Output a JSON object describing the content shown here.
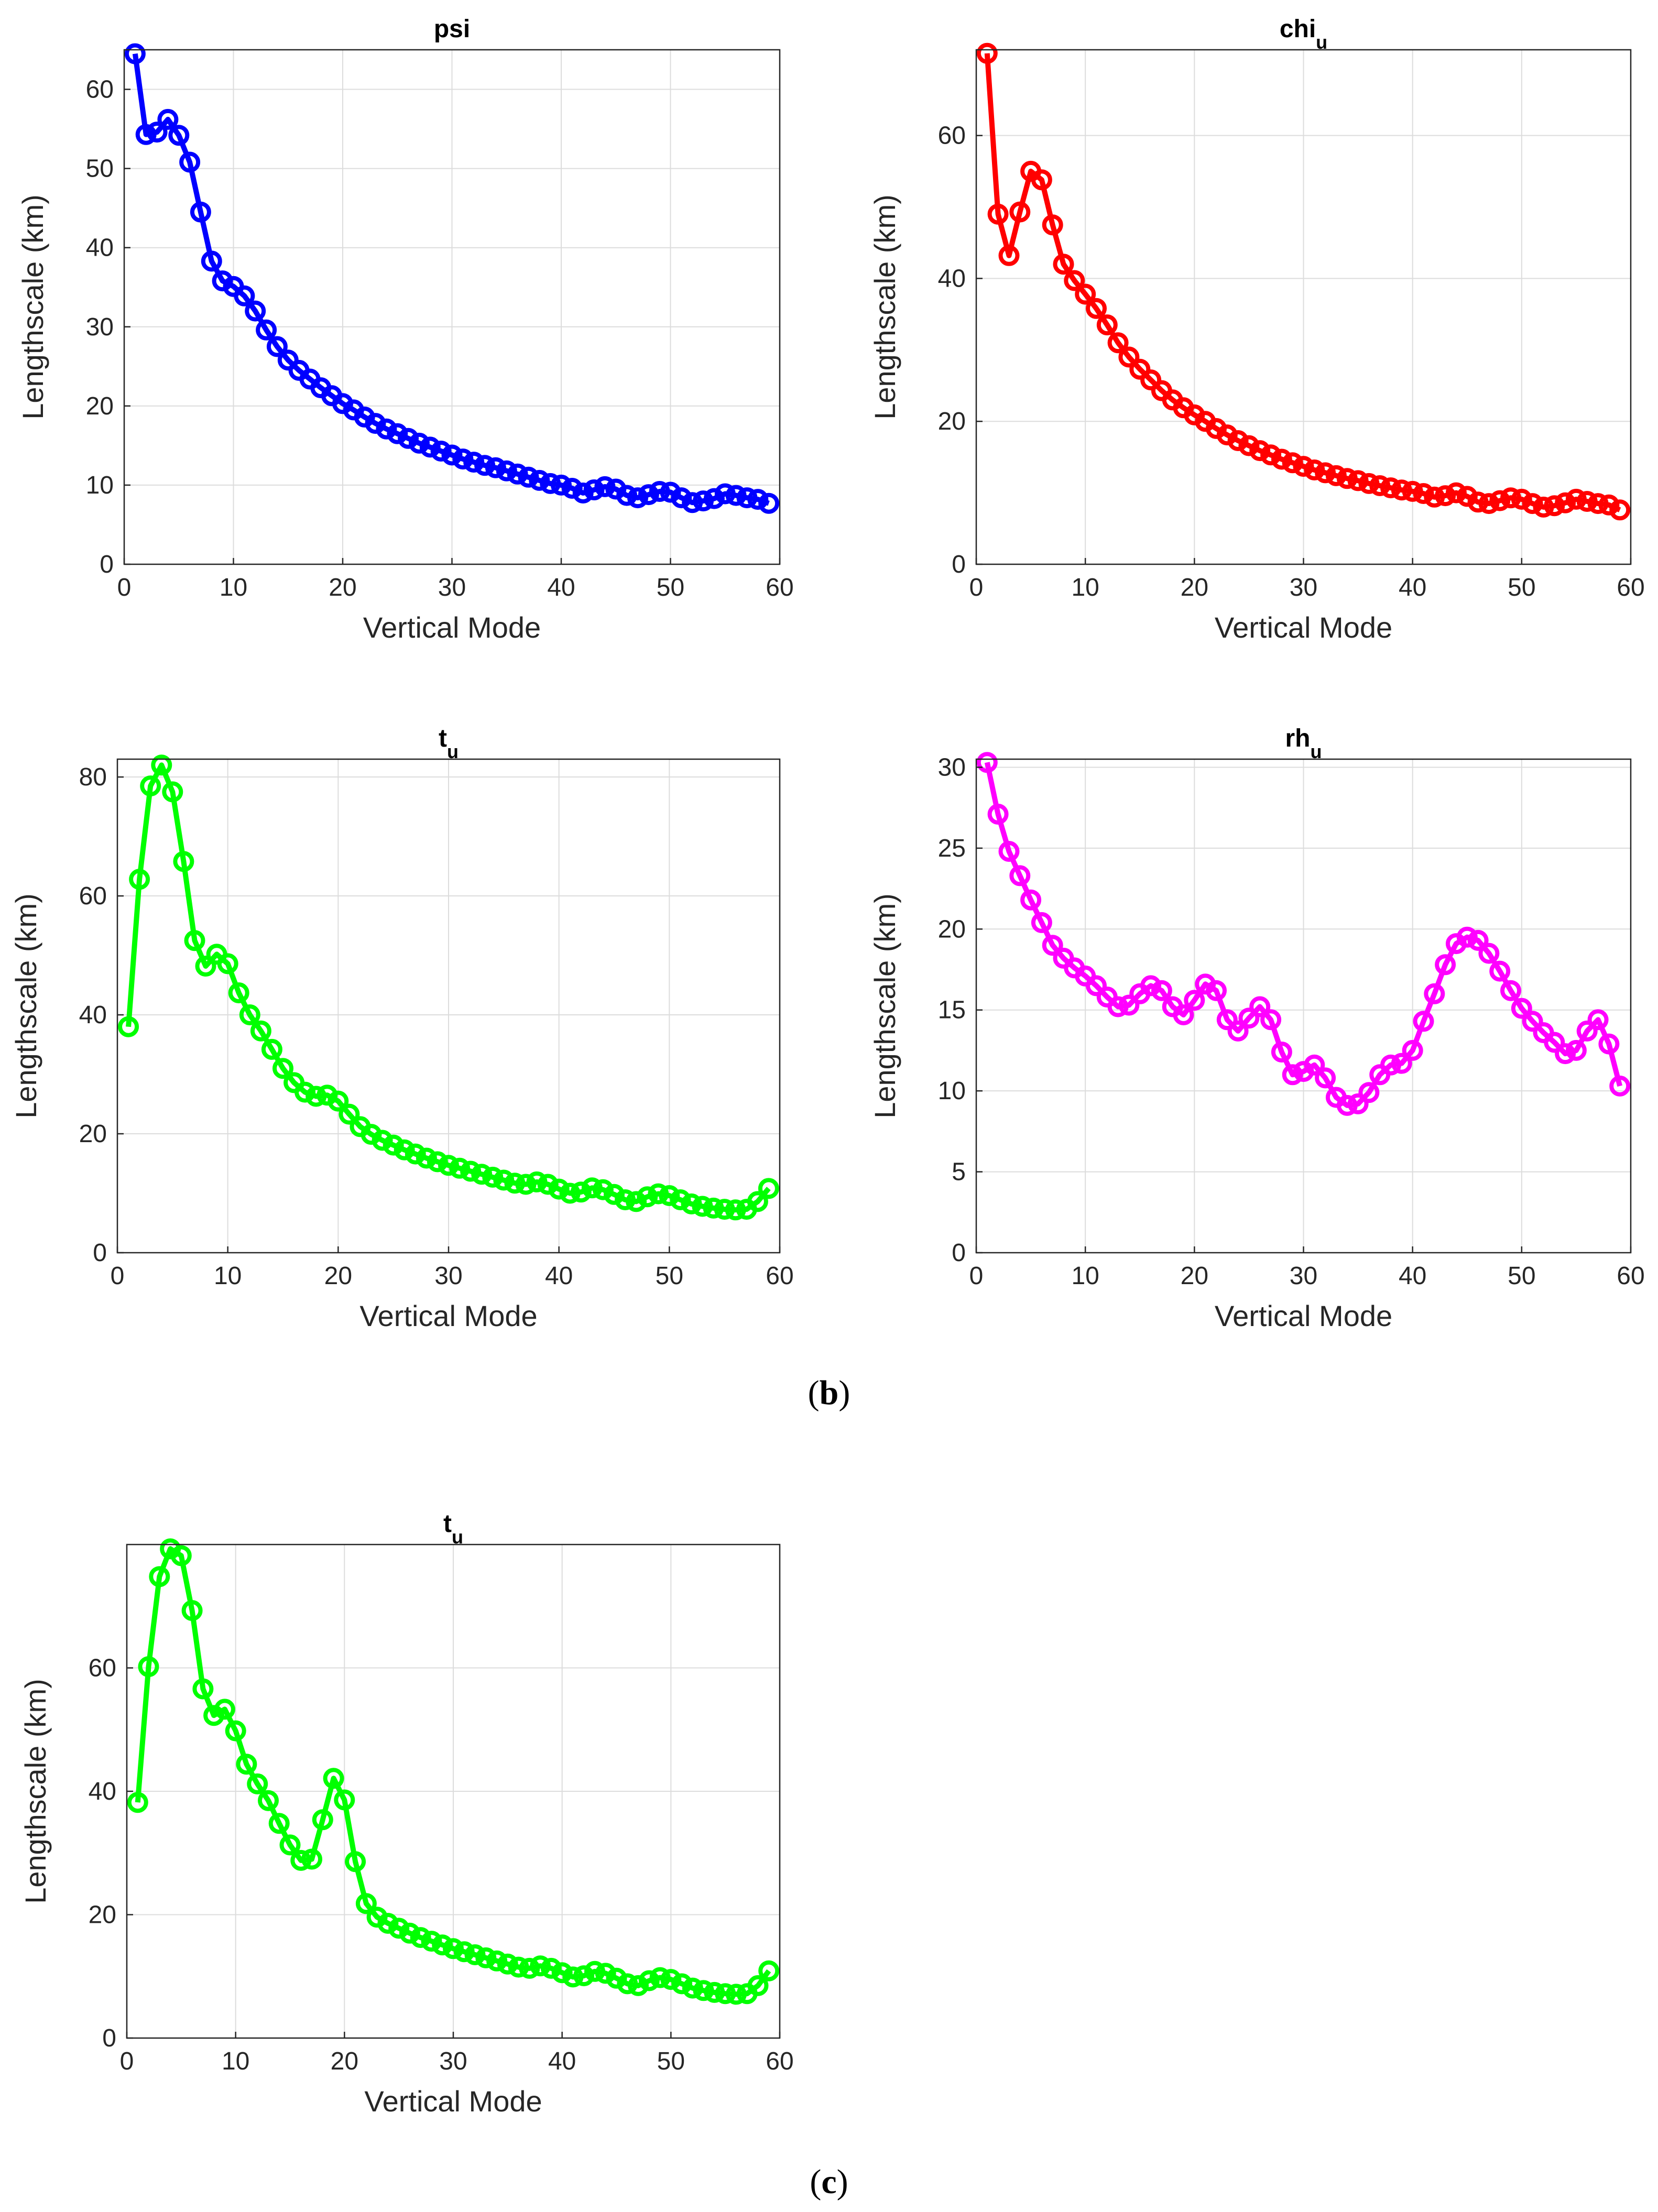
{
  "panel_labels": {
    "b": "b",
    "c": "c"
  },
  "chart_data": [
    {
      "id": "psi",
      "type": "line",
      "title": "psi",
      "title_sub": "",
      "xlabel": "Vertical Mode",
      "ylabel": "Lengthscale (km)",
      "xlim": [
        0,
        60
      ],
      "ylim": [
        0,
        65
      ],
      "xticks": [
        0,
        10,
        20,
        30,
        40,
        50,
        60
      ],
      "yticks": [
        0,
        10,
        20,
        30,
        40,
        50,
        60
      ],
      "grid": true,
      "color": "#0000ff",
      "marker": "circle",
      "x": [
        1,
        2,
        3,
        4,
        5,
        6,
        7,
        8,
        9,
        10,
        11,
        12,
        13,
        14,
        15,
        16,
        17,
        18,
        19,
        20,
        21,
        22,
        23,
        24,
        25,
        26,
        27,
        28,
        29,
        30,
        31,
        32,
        33,
        34,
        35,
        36,
        37,
        38,
        39,
        40,
        41,
        42,
        43,
        44,
        45,
        46,
        47,
        48,
        49,
        50,
        51,
        52,
        53,
        54,
        55,
        56,
        57,
        58,
        59
      ],
      "y": [
        64.5,
        54.3,
        54.6,
        56.2,
        54.2,
        50.8,
        44.5,
        38.3,
        35.8,
        35.1,
        33.9,
        32.0,
        29.6,
        27.5,
        25.8,
        24.5,
        23.4,
        22.3,
        21.3,
        20.3,
        19.5,
        18.6,
        17.8,
        17.1,
        16.5,
        15.9,
        15.3,
        14.8,
        14.3,
        13.8,
        13.3,
        12.9,
        12.5,
        12.2,
        11.8,
        11.4,
        11.0,
        10.6,
        10.2,
        10.0,
        9.6,
        9.0,
        9.4,
        9.8,
        9.5,
        8.7,
        8.4,
        8.8,
        9.2,
        9.1,
        8.4,
        7.8,
        8.0,
        8.3,
        8.9,
        8.7,
        8.4,
        8.2,
        7.7
      ]
    },
    {
      "id": "chi_u",
      "type": "line",
      "title": "chi",
      "title_sub": "u",
      "xlabel": "Vertical Mode",
      "ylabel": "Lengthscale (km)",
      "xlim": [
        0,
        60
      ],
      "ylim": [
        0,
        72
      ],
      "xticks": [
        0,
        10,
        20,
        30,
        40,
        50,
        60
      ],
      "yticks": [
        0,
        20,
        40,
        60
      ],
      "grid": true,
      "color": "#ff0000",
      "marker": "circle",
      "x": [
        1,
        2,
        3,
        4,
        5,
        6,
        7,
        8,
        9,
        10,
        11,
        12,
        13,
        14,
        15,
        16,
        17,
        18,
        19,
        20,
        21,
        22,
        23,
        24,
        25,
        26,
        27,
        28,
        29,
        30,
        31,
        32,
        33,
        34,
        35,
        36,
        37,
        38,
        39,
        40,
        41,
        42,
        43,
        44,
        45,
        46,
        47,
        48,
        49,
        50,
        51,
        52,
        53,
        54,
        55,
        56,
        57,
        58,
        59
      ],
      "y": [
        71.5,
        49.0,
        43.2,
        49.3,
        55.0,
        53.8,
        47.5,
        42.0,
        39.7,
        37.8,
        35.8,
        33.5,
        31.0,
        29.0,
        27.3,
        25.8,
        24.3,
        23.0,
        21.9,
        20.9,
        20.0,
        19.0,
        18.1,
        17.3,
        16.6,
        15.9,
        15.3,
        14.7,
        14.2,
        13.7,
        13.2,
        12.8,
        12.4,
        12.0,
        11.7,
        11.3,
        11.0,
        10.7,
        10.4,
        10.2,
        9.9,
        9.4,
        9.6,
        10.0,
        9.5,
        8.7,
        8.5,
        8.9,
        9.3,
        9.1,
        8.5,
        8.0,
        8.2,
        8.6,
        9.1,
        8.8,
        8.5,
        8.3,
        7.6
      ]
    },
    {
      "id": "t_u_b",
      "type": "line",
      "title": "t",
      "title_sub": "u",
      "xlabel": "Vertical Mode",
      "ylabel": "Lengthscale (km)",
      "xlim": [
        0,
        60
      ],
      "ylim": [
        0,
        83
      ],
      "xticks": [
        0,
        10,
        20,
        30,
        40,
        50,
        60
      ],
      "yticks": [
        0,
        20,
        40,
        60,
        80
      ],
      "grid": true,
      "color": "#00ff00",
      "marker": "circle",
      "x": [
        1,
        2,
        3,
        4,
        5,
        6,
        7,
        8,
        9,
        10,
        11,
        12,
        13,
        14,
        15,
        16,
        17,
        18,
        19,
        20,
        21,
        22,
        23,
        24,
        25,
        26,
        27,
        28,
        29,
        30,
        31,
        32,
        33,
        34,
        35,
        36,
        37,
        38,
        39,
        40,
        41,
        42,
        43,
        44,
        45,
        46,
        47,
        48,
        49,
        50,
        51,
        52,
        53,
        54,
        55,
        56,
        57,
        58,
        59
      ],
      "y": [
        38.0,
        62.8,
        78.5,
        82.0,
        77.5,
        65.8,
        52.5,
        48.2,
        50.2,
        48.6,
        43.7,
        40.0,
        37.3,
        34.2,
        31.0,
        28.6,
        27.0,
        26.3,
        26.5,
        25.5,
        23.3,
        21.2,
        19.9,
        18.9,
        18.1,
        17.3,
        16.6,
        15.9,
        15.3,
        14.7,
        14.2,
        13.7,
        13.2,
        12.7,
        12.2,
        11.7,
        11.5,
        11.9,
        11.5,
        10.7,
        10.0,
        10.2,
        10.9,
        10.6,
        9.8,
        8.9,
        8.6,
        9.4,
        9.9,
        9.6,
        8.9,
        8.2,
        7.8,
        7.5,
        7.3,
        7.2,
        7.3,
        8.6,
        10.8
      ]
    },
    {
      "id": "rh_u",
      "type": "line",
      "title": "rh",
      "title_sub": "u",
      "xlabel": "Vertical Mode",
      "ylabel": "Lengthscale (km)",
      "xlim": [
        0,
        60
      ],
      "ylim": [
        0,
        30.5
      ],
      "xticks": [
        0,
        10,
        20,
        30,
        40,
        50,
        60
      ],
      "yticks": [
        0,
        5,
        10,
        15,
        20,
        25,
        30
      ],
      "grid": true,
      "color": "#ff00ff",
      "marker": "circle",
      "x": [
        1,
        2,
        3,
        4,
        5,
        6,
        7,
        8,
        9,
        10,
        11,
        12,
        13,
        14,
        15,
        16,
        17,
        18,
        19,
        20,
        21,
        22,
        23,
        24,
        25,
        26,
        27,
        28,
        29,
        30,
        31,
        32,
        33,
        34,
        35,
        36,
        37,
        38,
        39,
        40,
        41,
        42,
        43,
        44,
        45,
        46,
        47,
        48,
        49,
        50,
        51,
        52,
        53,
        54,
        55,
        56,
        57,
        58,
        59
      ],
      "y": [
        30.3,
        27.1,
        24.8,
        23.3,
        21.8,
        20.4,
        19.0,
        18.2,
        17.6,
        17.1,
        16.5,
        15.8,
        15.2,
        15.3,
        16.0,
        16.5,
        16.2,
        15.2,
        14.7,
        15.6,
        16.6,
        16.2,
        14.4,
        13.7,
        14.5,
        15.2,
        14.4,
        12.4,
        11.0,
        11.2,
        11.6,
        10.8,
        9.6,
        9.1,
        9.2,
        9.9,
        11.0,
        11.6,
        11.7,
        12.5,
        14.3,
        16.0,
        17.8,
        19.1,
        19.5,
        19.3,
        18.5,
        17.4,
        16.2,
        15.1,
        14.3,
        13.6,
        13.0,
        12.3,
        12.5,
        13.7,
        14.4,
        12.9,
        10.3
      ]
    },
    {
      "id": "t_u_c",
      "type": "line",
      "title": "t",
      "title_sub": "u",
      "xlabel": "Vertical Mode",
      "ylabel": "Lengthscale (km)",
      "xlim": [
        0,
        60
      ],
      "ylim": [
        0,
        80
      ],
      "xticks": [
        0,
        10,
        20,
        30,
        40,
        50,
        60
      ],
      "yticks": [
        0,
        20,
        40,
        60
      ],
      "grid": true,
      "color": "#00ff00",
      "marker": "circle",
      "x": [
        1,
        2,
        3,
        4,
        5,
        6,
        7,
        8,
        9,
        10,
        11,
        12,
        13,
        14,
        15,
        16,
        17,
        18,
        19,
        20,
        21,
        22,
        23,
        24,
        25,
        26,
        27,
        28,
        29,
        30,
        31,
        32,
        33,
        34,
        35,
        36,
        37,
        38,
        39,
        40,
        41,
        42,
        43,
        44,
        45,
        46,
        47,
        48,
        49,
        50,
        51,
        52,
        53,
        54,
        55,
        56,
        57,
        58,
        59
      ],
      "y": [
        38.2,
        60.2,
        74.8,
        79.3,
        78.2,
        69.3,
        56.6,
        52.3,
        53.3,
        49.8,
        44.4,
        41.2,
        38.5,
        34.8,
        31.3,
        28.8,
        29.0,
        35.4,
        42.1,
        38.6,
        28.6,
        21.8,
        19.6,
        18.6,
        17.8,
        17.0,
        16.3,
        15.7,
        15.1,
        14.5,
        14.0,
        13.5,
        13.0,
        12.5,
        12.0,
        11.5,
        11.3,
        11.7,
        11.3,
        10.6,
        9.9,
        10.1,
        10.8,
        10.5,
        9.7,
        8.8,
        8.5,
        9.3,
        9.8,
        9.5,
        8.8,
        8.1,
        7.7,
        7.4,
        7.2,
        7.1,
        7.2,
        8.5,
        10.9
      ]
    }
  ]
}
